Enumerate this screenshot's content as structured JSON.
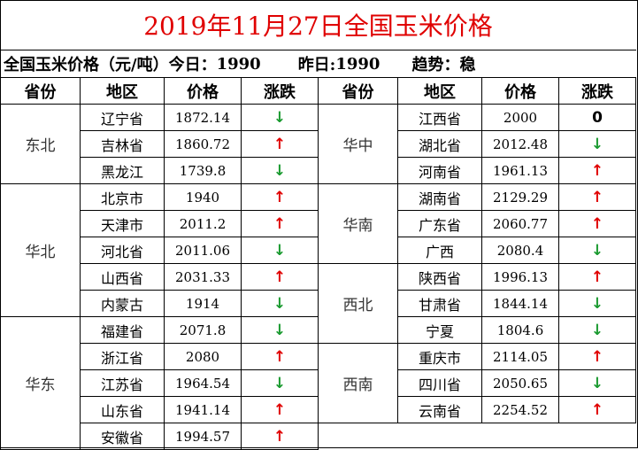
{
  "title": "2019年11月27日全国玉米价格",
  "summary": {
    "label": "全国玉米价格（元/吨）今日：",
    "today": "1990",
    "yesterday_label": "昨日:",
    "yesterday": "1990",
    "trend_label": "趋势：",
    "trend": "稳"
  },
  "headers": {
    "province": "省份",
    "district": "地区",
    "price": "价格",
    "change": "涨跌"
  },
  "colors": {
    "title": "#e00000",
    "up": "#e00000",
    "down": "#1a9a30"
  },
  "left": [
    {
      "region": "东北",
      "rows": [
        {
          "province": "辽宁省",
          "price": "1872.14",
          "trend": "down",
          "symbol": "↓"
        },
        {
          "province": "吉林省",
          "price": "1860.72",
          "trend": "up",
          "symbol": "↑"
        },
        {
          "province": "黑龙江",
          "price": "1739.8",
          "trend": "down",
          "symbol": "↓"
        }
      ]
    },
    {
      "region": "华北",
      "rows": [
        {
          "province": "北京市",
          "price": "1940",
          "trend": "up",
          "symbol": "↑"
        },
        {
          "province": "天津市",
          "price": "2011.2",
          "trend": "up",
          "symbol": "↑"
        },
        {
          "province": "河北省",
          "price": "2011.06",
          "trend": "down",
          "symbol": "↓"
        },
        {
          "province": "山西省",
          "price": "2031.33",
          "trend": "up",
          "symbol": "↑"
        },
        {
          "province": "内蒙古",
          "price": "1914",
          "trend": "down",
          "symbol": "↓"
        }
      ]
    },
    {
      "region": "华东",
      "rows": [
        {
          "province": "福建省",
          "price": "2071.8",
          "trend": "down",
          "symbol": "↓"
        },
        {
          "province": "浙江省",
          "price": "2080",
          "trend": "up",
          "symbol": "↑"
        },
        {
          "province": "江苏省",
          "price": "1964.54",
          "trend": "down",
          "symbol": "↓"
        },
        {
          "province": "山东省",
          "price": "1941.14",
          "trend": "up",
          "symbol": "↑"
        },
        {
          "province": "安徽省",
          "price": "1994.57",
          "trend": "up",
          "symbol": "↑"
        }
      ]
    }
  ],
  "right": [
    {
      "region": "华中",
      "rows": [
        {
          "province": "江西省",
          "price": "2000",
          "trend": "zero",
          "symbol": "0"
        },
        {
          "province": "湖北省",
          "price": "2012.48",
          "trend": "down",
          "symbol": "↓"
        },
        {
          "province": "河南省",
          "price": "1961.13",
          "trend": "up",
          "symbol": "↑"
        }
      ]
    },
    {
      "region": "华南",
      "rows": [
        {
          "province": "湖南省",
          "price": "2129.29",
          "trend": "up",
          "symbol": "↑"
        },
        {
          "province": "广东省",
          "price": "2060.77",
          "trend": "up",
          "symbol": "↑"
        },
        {
          "province": "广西",
          "price": "2080.4",
          "trend": "down",
          "symbol": "↓"
        }
      ]
    },
    {
      "region": "西北",
      "rows": [
        {
          "province": "陕西省",
          "price": "1996.13",
          "trend": "up",
          "symbol": "↑"
        },
        {
          "province": "甘肃省",
          "price": "1844.14",
          "trend": "down",
          "symbol": "↓"
        },
        {
          "province": "宁夏",
          "price": "1804.6",
          "trend": "down",
          "symbol": "↓"
        }
      ]
    },
    {
      "region": "西南",
      "rows": [
        {
          "province": "重庆市",
          "price": "2114.05",
          "trend": "up",
          "symbol": "↑"
        },
        {
          "province": "四川省",
          "price": "2050.65",
          "trend": "down",
          "symbol": "↓"
        },
        {
          "province": "云南省",
          "price": "2254.52",
          "trend": "up",
          "symbol": "↑"
        }
      ]
    }
  ]
}
